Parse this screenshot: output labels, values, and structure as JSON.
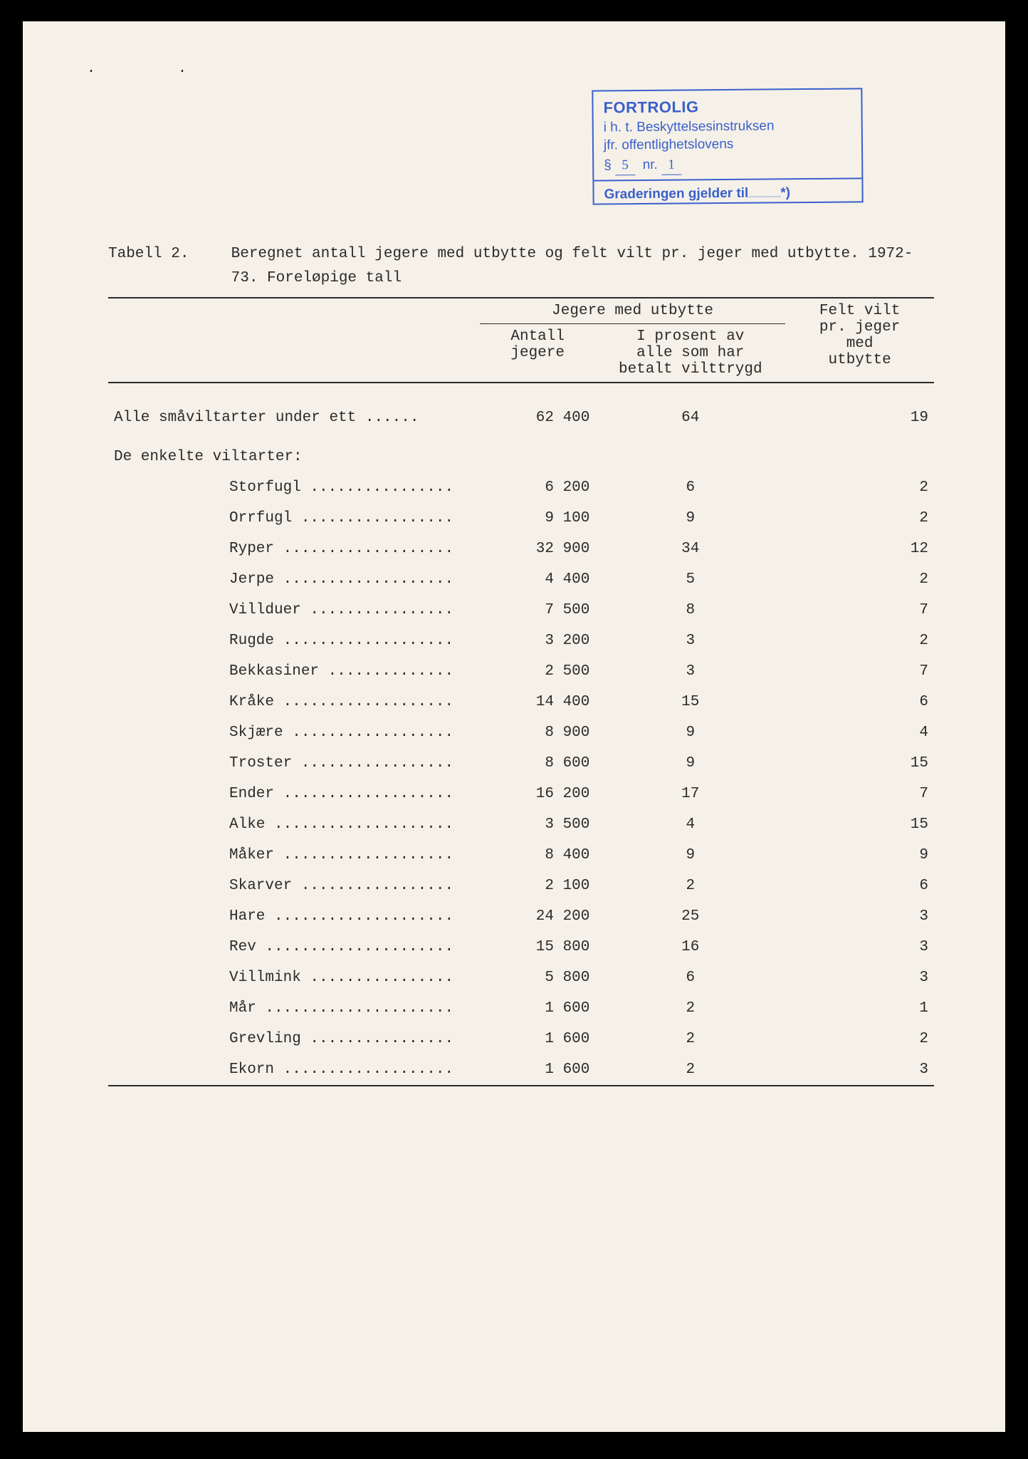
{
  "stamp": {
    "title": "FORTROLIG",
    "line2": "i h. t. Beskyttelsesinstruksen",
    "line3": "jfr. offentlighetslovens",
    "section_symbol": "§",
    "section_num": "5",
    "nr_label": "nr.",
    "nr_value": "1",
    "footer": "Graderingen gjelder til",
    "footer_mark": "*)"
  },
  "caption": {
    "label": "Tabell 2.",
    "text": "Beregnet antall jegere med utbytte og felt vilt pr. jeger med utbytte.  1972-73.  Foreløpige tall"
  },
  "headers": {
    "group": "Jegere med utbytte",
    "col1a": "Antall",
    "col1b": "jegere",
    "col2a": "I prosent av",
    "col2b": "alle som har",
    "col2c": "betalt vilttrygd",
    "col3a": "Felt vilt",
    "col3b": "pr. jeger",
    "col3c": "med",
    "col3d": "utbytte"
  },
  "total_row": {
    "label": "Alle småviltarter under ett ......",
    "hunters": "62 400",
    "percent": "64",
    "per_hunter": "19"
  },
  "section_label": "De enkelte viltarter:",
  "rows": [
    {
      "label": "Storfugl ................",
      "hunters": "6 200",
      "percent": "6",
      "per_hunter": "2"
    },
    {
      "label": "Orrfugl .................",
      "hunters": "9 100",
      "percent": "9",
      "per_hunter": "2"
    },
    {
      "label": "Ryper ...................",
      "hunters": "32 900",
      "percent": "34",
      "per_hunter": "12"
    },
    {
      "label": "Jerpe ...................",
      "hunters": "4 400",
      "percent": "5",
      "per_hunter": "2"
    },
    {
      "label": "Villduer ................",
      "hunters": "7 500",
      "percent": "8",
      "per_hunter": "7"
    },
    {
      "label": "Rugde ...................",
      "hunters": "3 200",
      "percent": "3",
      "per_hunter": "2"
    },
    {
      "label": "Bekkasiner ..............",
      "hunters": "2 500",
      "percent": "3",
      "per_hunter": "7"
    },
    {
      "label": "Kråke ...................",
      "hunters": "14 400",
      "percent": "15",
      "per_hunter": "6"
    },
    {
      "label": "Skjære ..................",
      "hunters": "8 900",
      "percent": "9",
      "per_hunter": "4"
    },
    {
      "label": "Troster .................",
      "hunters": "8 600",
      "percent": "9",
      "per_hunter": "15"
    },
    {
      "label": "Ender ...................",
      "hunters": "16 200",
      "percent": "17",
      "per_hunter": "7"
    },
    {
      "label": "Alke ....................",
      "hunters": "3 500",
      "percent": "4",
      "per_hunter": "15"
    },
    {
      "label": "Måker ...................",
      "hunters": "8 400",
      "percent": "9",
      "per_hunter": "9"
    },
    {
      "label": "Skarver .................",
      "hunters": "2 100",
      "percent": "2",
      "per_hunter": "6"
    },
    {
      "label": "Hare ....................",
      "hunters": "24 200",
      "percent": "25",
      "per_hunter": "3"
    },
    {
      "label": "Rev .....................",
      "hunters": "15 800",
      "percent": "16",
      "per_hunter": "3"
    },
    {
      "label": "Villmink ................",
      "hunters": "5 800",
      "percent": "6",
      "per_hunter": "3"
    },
    {
      "label": "Mår .....................",
      "hunters": "1 600",
      "percent": "2",
      "per_hunter": "1"
    },
    {
      "label": "Grevling ................",
      "hunters": "1 600",
      "percent": "2",
      "per_hunter": "2"
    },
    {
      "label": "Ekorn ...................",
      "hunters": "1 600",
      "percent": "2",
      "per_hunter": "3"
    }
  ],
  "colors": {
    "page_bg": "#f5f1e8",
    "text": "#2a2a2a",
    "stamp": "#3a5fcc",
    "outer_bg": "#000000"
  }
}
